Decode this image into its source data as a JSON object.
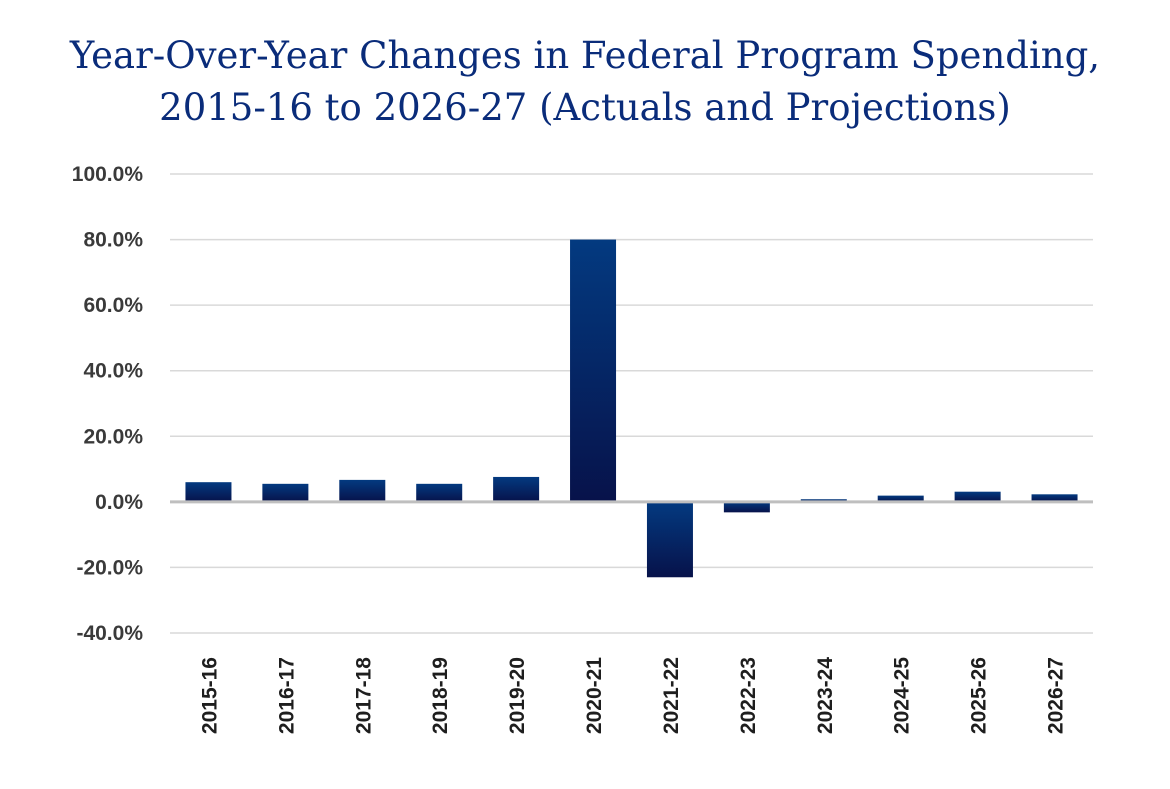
{
  "chart_data": {
    "type": "bar",
    "title": "Year-Over-Year Changes in Federal Program Spending, 2015-16 to 2026-27 (Actuals and Projections)",
    "title_lines": [
      "Year-Over-Year Changes in Federal Program Spending,",
      "2015-16 to 2026-27 (Actuals and Projections)"
    ],
    "categories": [
      "2015-16",
      "2016-17",
      "2017-18",
      "2018-19",
      "2019-20",
      "2020-21",
      "2021-22",
      "2022-23",
      "2023-24",
      "2024-25",
      "2025-26",
      "2026-27"
    ],
    "values": [
      6.0,
      5.5,
      6.7,
      5.5,
      7.6,
      80.0,
      -23.0,
      -3.2,
      0.8,
      1.9,
      3.1,
      2.3
    ],
    "ylim": [
      -40,
      100
    ],
    "yticks": [
      100,
      80,
      60,
      40,
      20,
      0,
      -20,
      -40
    ],
    "ytick_labels": [
      "100.0%",
      "80.0%",
      "60.0%",
      "40.0%",
      "20.0%",
      "0.0%",
      "-20.0%",
      "-40.0%"
    ],
    "xlabel": "",
    "ylabel": "",
    "grid": true,
    "legend": "none",
    "colors": {
      "bar_top": "#033a80",
      "bar_bottom": "#07124a",
      "title": "#0a2c7a",
      "grid": "#d9d9d9",
      "zero_line": "#bfbfbf"
    }
  }
}
